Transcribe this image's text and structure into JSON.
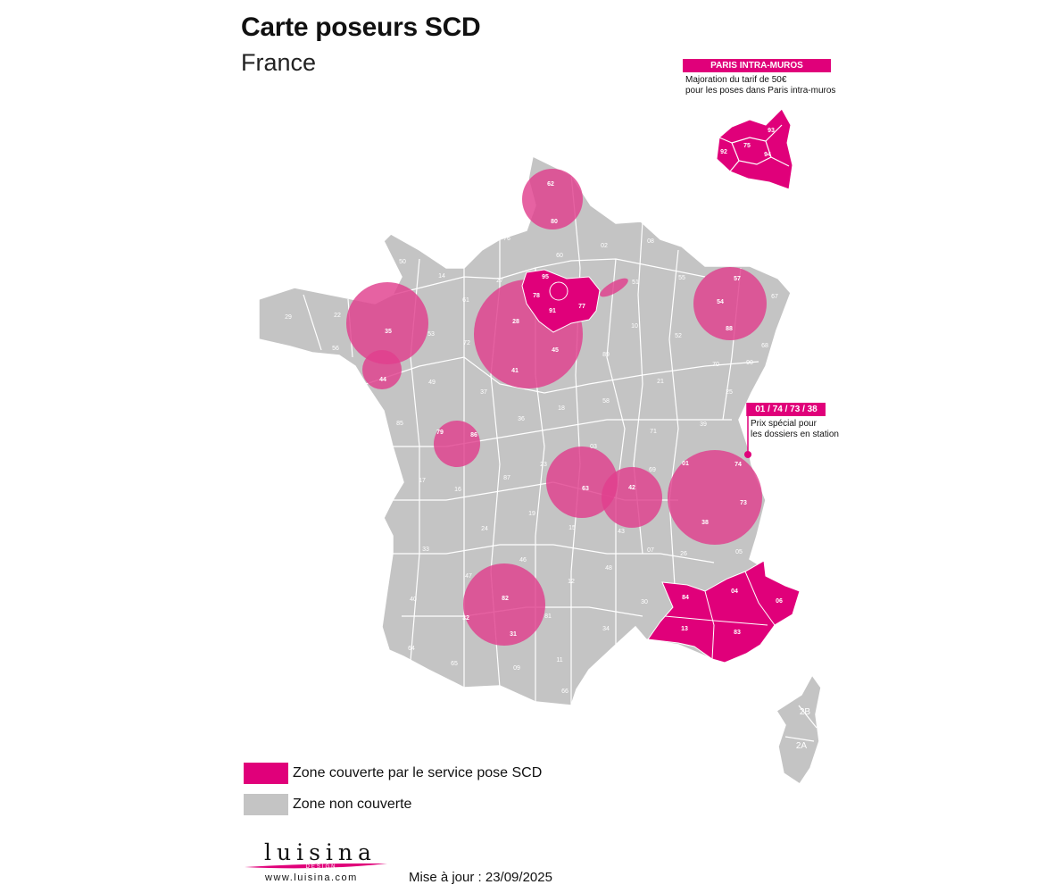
{
  "header": {
    "title": "Carte poseurs SCD",
    "subtitle": "France"
  },
  "paris_callout": {
    "heading": "PARIS INTRA-MUROS",
    "line1": "Majoration du tarif de 50€",
    "line2": "pour les poses dans Paris intra-muros",
    "departments": [
      "93",
      "75",
      "92",
      "94"
    ]
  },
  "station_callout": {
    "heading": "01 / 74 / 73 / 38",
    "line1": "Prix spécial pour",
    "line2": "les dossiers en station"
  },
  "colors": {
    "covered": "#e0007a",
    "covered_zone_fill": "#e0408e",
    "uncovered": "#c4c4c4"
  },
  "department_labels": {
    "grey": [
      "59",
      "76",
      "02",
      "08",
      "50",
      "14",
      "61",
      "27",
      "60",
      "51",
      "55",
      "67",
      "29",
      "22",
      "56",
      "53",
      "72",
      "10",
      "52",
      "68",
      "49",
      "37",
      "89",
      "21",
      "70",
      "90",
      "25",
      "85",
      "36",
      "18",
      "58",
      "39",
      "71",
      "17",
      "16",
      "87",
      "23",
      "69",
      "19",
      "03",
      "24",
      "15",
      "43",
      "07",
      "26",
      "05",
      "33",
      "47",
      "46",
      "12",
      "48",
      "30",
      "40",
      "81",
      "34",
      "64",
      "65",
      "09",
      "11",
      "66",
      "2B",
      "2A"
    ],
    "covered": [
      "62",
      "80",
      "95",
      "78",
      "91",
      "77",
      "75",
      "92",
      "93",
      "94",
      "35",
      "44",
      "28",
      "45",
      "41",
      "79",
      "86",
      "63",
      "42",
      "01",
      "74",
      "73",
      "38",
      "57",
      "54",
      "88",
      "82",
      "32",
      "31",
      "84",
      "04",
      "06",
      "13",
      "83"
    ]
  },
  "legend": {
    "covered_label": "Zone couverte par le service pose SCD",
    "uncovered_label": "Zone non couverte"
  },
  "footer": {
    "update_text": "Mise à jour : 23/09/2025",
    "logo_name": "luisina",
    "logo_tagline": "DESIGN",
    "logo_url": "www.luisina.com"
  }
}
